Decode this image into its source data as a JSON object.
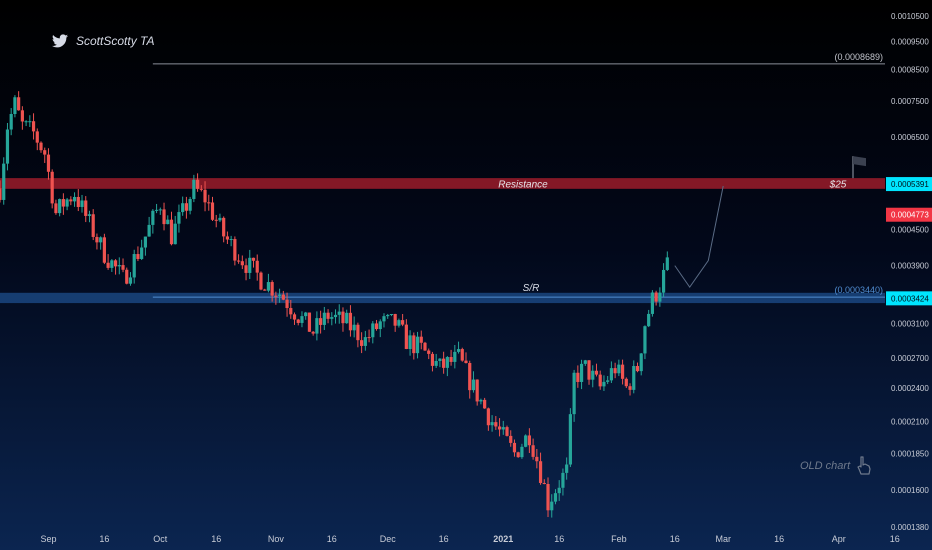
{
  "author": {
    "name": "ScottScotty TA",
    "icon": "twitter-bird-icon"
  },
  "annotations": {
    "resistance_label": "Resistance",
    "sr_label": "S/R",
    "target_label": "$25",
    "old_chart_label": "OLD chart",
    "old_chart_icon": "pointing-hand-icon",
    "flag_icon": "flag-icon"
  },
  "colors": {
    "up": "#26a69a",
    "down": "#ef5350",
    "resistance_zone": "#9b1c2a",
    "sr_zone": "#1d4e8c",
    "badge_cyan": "#00e5ff",
    "badge_red": "#f23645",
    "text_axis": "#c8ccd6"
  },
  "chart_data": {
    "type": "candlestick",
    "title": "",
    "y_axis": {
      "scale": "log",
      "ticks": [
        "0.0010500",
        "0.0009500",
        "0.0008500",
        "0.0007500",
        "0.0006500",
        "0.0004500",
        "0.0003900",
        "0.0003100",
        "0.0002700",
        "0.0002400",
        "0.0002100",
        "0.0001850",
        "0.0001600",
        "0.0001380"
      ],
      "range": [
        0.000126,
        0.00112
      ]
    },
    "x_axis": {
      "ticks": [
        "Sep",
        "16",
        "Oct",
        "16",
        "Nov",
        "16",
        "Dec",
        "16",
        "2021",
        "16",
        "Feb",
        "16",
        "Mar",
        "16",
        "Apr",
        "16"
      ],
      "range": [
        "2020-08-19",
        "2021-04-26"
      ]
    },
    "badges": [
      {
        "text": "0.0005391",
        "value": 0.0005391,
        "style": "cyan"
      },
      {
        "text": "0.0004773",
        "value": 0.0004773,
        "style": "red"
      },
      {
        "text": "0.0003424",
        "value": 0.0003424,
        "style": "cyan"
      }
    ],
    "horizontal_lines": [
      {
        "label": "(0.0008689)",
        "value": 0.0008689,
        "x_start": "2020-09-29"
      },
      {
        "label": "(0.0003440)",
        "value": 0.000344,
        "x_start": "2020-09-29"
      }
    ],
    "zones": [
      {
        "name": "Resistance",
        "from": 0.000529,
        "to": 0.000552
      },
      {
        "name": "S/R",
        "from": 0.000336,
        "to": 0.00035
      }
    ],
    "projection": [
      [
        "2021-02-16",
        0.00039
      ],
      [
        "2021-02-20",
        0.000358
      ],
      [
        "2021-02-25",
        0.000398
      ],
      [
        "2021-03-01",
        0.000535
      ]
    ],
    "price_path": [
      [
        "2020-08-19",
        0.00053
      ],
      [
        "2020-08-21",
        0.00068
      ],
      [
        "2020-08-23",
        0.00074
      ],
      [
        "2020-08-25",
        0.00068
      ],
      [
        "2020-08-28",
        0.00066
      ],
      [
        "2020-08-31",
        0.00061
      ],
      [
        "2020-09-03",
        0.00048
      ],
      [
        "2020-09-05",
        0.0005
      ],
      [
        "2020-09-08",
        0.00052
      ],
      [
        "2020-09-12",
        0.00046
      ],
      [
        "2020-09-16",
        0.00041
      ],
      [
        "2020-09-21",
        0.00037
      ],
      [
        "2020-09-25",
        0.00041
      ],
      [
        "2020-10-01",
        0.0005
      ],
      [
        "2020-10-04",
        0.00044
      ],
      [
        "2020-10-07",
        0.00048
      ],
      [
        "2020-10-10",
        0.00053
      ],
      [
        "2020-10-13",
        0.00051
      ],
      [
        "2020-10-18",
        0.00044
      ],
      [
        "2020-10-23",
        0.0004
      ],
      [
        "2020-10-28",
        0.00037
      ],
      [
        "2020-11-02",
        0.00035
      ],
      [
        "2020-11-07",
        0.00032
      ],
      [
        "2020-11-11",
        0.0003
      ],
      [
        "2020-11-15",
        0.00032
      ],
      [
        "2020-11-20",
        0.00031
      ],
      [
        "2020-11-25",
        0.00029
      ],
      [
        "2020-11-29",
        0.00031
      ],
      [
        "2020-12-03",
        0.00031
      ],
      [
        "2020-12-06",
        0.00029
      ],
      [
        "2020-12-10",
        0.00028
      ],
      [
        "2020-12-15",
        0.00026
      ],
      [
        "2020-12-20",
        0.00027
      ],
      [
        "2020-12-24",
        0.00024
      ],
      [
        "2020-12-29",
        0.00021
      ],
      [
        "2021-01-04",
        0.000185
      ],
      [
        "2021-01-08",
        0.0002
      ],
      [
        "2021-01-11",
        0.000172
      ],
      [
        "2021-01-13",
        0.000152
      ],
      [
        "2021-01-16",
        0.000165
      ],
      [
        "2021-01-18",
        0.000172
      ],
      [
        "2021-01-20",
        0.00025
      ],
      [
        "2021-01-23",
        0.00026
      ],
      [
        "2021-01-27",
        0.00024
      ],
      [
        "2021-01-31",
        0.00026
      ],
      [
        "2021-02-03",
        0.00024
      ],
      [
        "2021-02-06",
        0.00026
      ],
      [
        "2021-02-08",
        0.00031
      ],
      [
        "2021-02-10",
        0.00034
      ],
      [
        "2021-02-12",
        0.00036
      ],
      [
        "2021-02-14",
        0.00039
      ]
    ]
  }
}
